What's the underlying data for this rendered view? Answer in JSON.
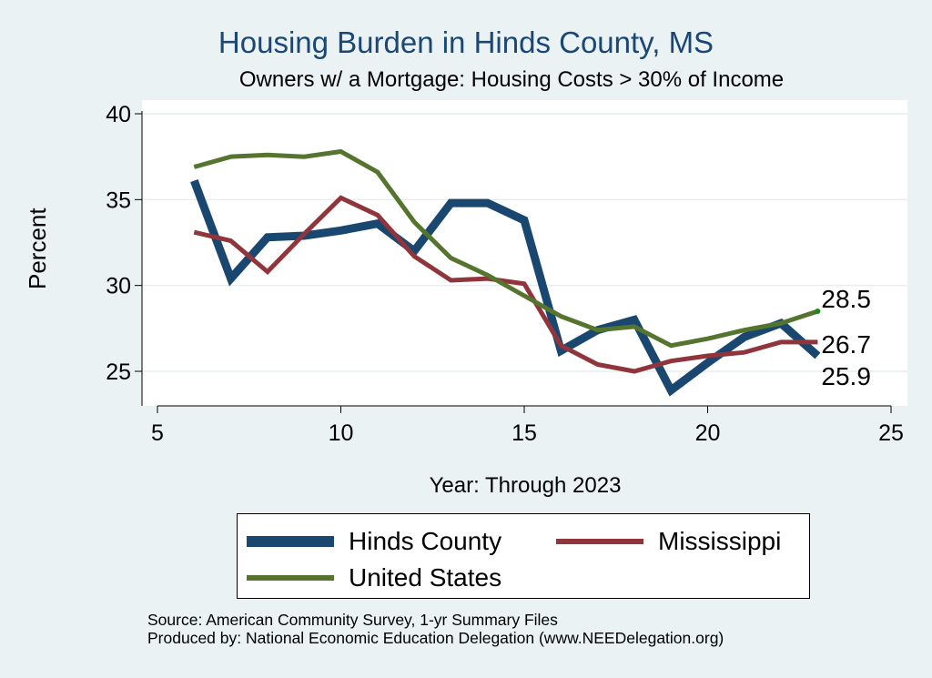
{
  "chart_data": {
    "type": "line",
    "title": "Housing Burden in Hinds County, MS",
    "subtitle": "Owners w/ a Mortgage: Housing Costs > 30% of Income",
    "xlabel": "Year: Through 2023",
    "ylabel": "Percent",
    "xlim": [
      5,
      25
    ],
    "ylim": [
      23.5,
      40.5
    ],
    "x_ticks": [
      5,
      10,
      15,
      20,
      25
    ],
    "y_ticks": [
      25,
      30,
      35,
      40
    ],
    "grid": true,
    "legend_position": "bottom",
    "x": [
      6,
      7,
      8,
      9,
      10,
      11,
      12,
      13,
      14,
      15,
      16,
      17,
      18,
      19,
      20,
      21,
      22,
      23
    ],
    "series": [
      {
        "name": "Hinds County",
        "color": "#1a476f",
        "width": 9,
        "values": [
          36.1,
          30.4,
          32.8,
          32.9,
          33.2,
          33.6,
          32.0,
          34.8,
          34.8,
          33.8,
          26.2,
          27.4,
          28.0,
          23.9,
          25.5,
          27.0,
          27.8,
          25.9
        ],
        "end_label": "25.9"
      },
      {
        "name": "Mississippi",
        "color": "#90353b",
        "width": 5,
        "values": [
          33.1,
          32.6,
          30.8,
          33.0,
          35.1,
          34.1,
          31.7,
          30.3,
          30.4,
          30.1,
          26.5,
          25.4,
          25.0,
          25.6,
          25.9,
          26.1,
          26.7,
          26.7
        ],
        "end_label": "26.7"
      },
      {
        "name": "United States",
        "color": "#55752f",
        "width": 5,
        "values": [
          36.9,
          37.5,
          37.6,
          37.5,
          37.8,
          36.6,
          33.7,
          31.6,
          30.6,
          29.4,
          28.2,
          27.4,
          27.6,
          26.5,
          26.9,
          27.4,
          27.8,
          28.5
        ],
        "end_label": "28.5"
      }
    ],
    "source_lines": [
      "Source: American Community Survey, 1-yr Summary Files",
      "Produced by: National Economic Education Delegation (www.NEEDelegation.org)"
    ]
  }
}
